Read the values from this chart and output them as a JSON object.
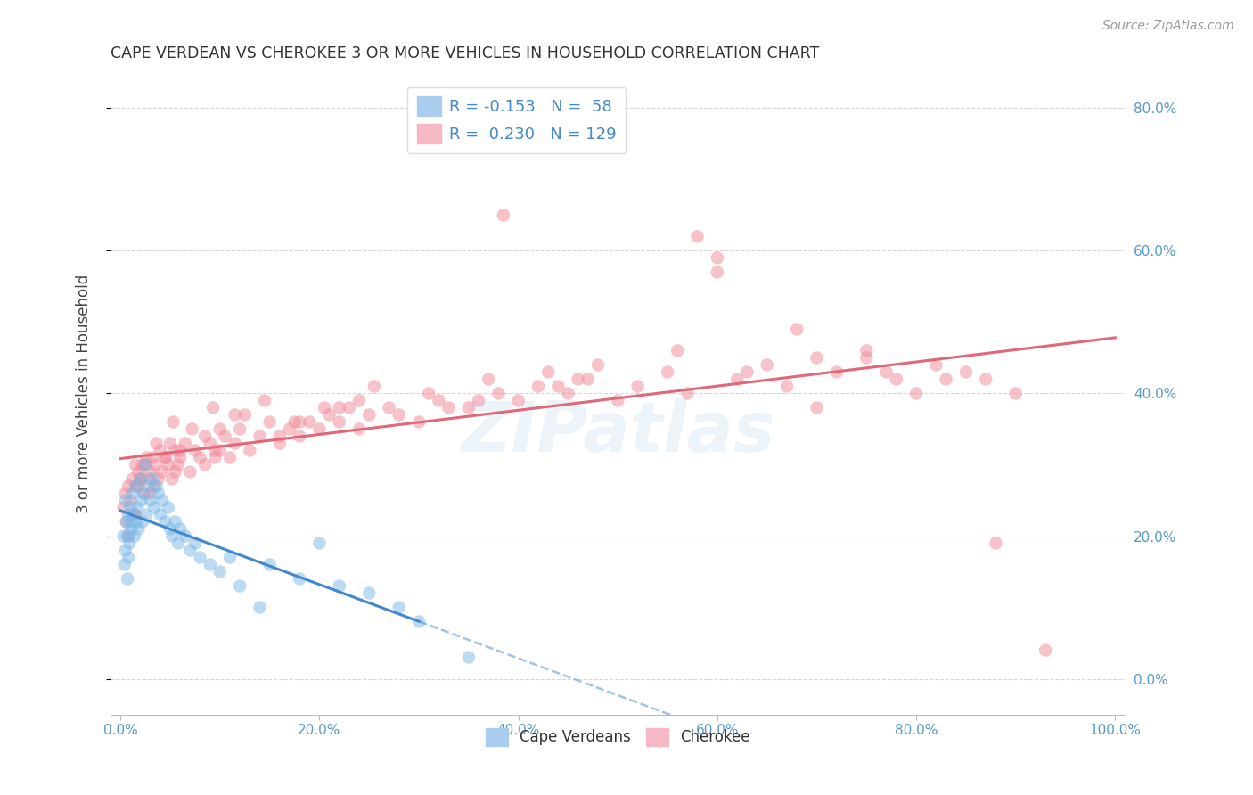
{
  "title": "CAPE VERDEAN VS CHEROKEE 3 OR MORE VEHICLES IN HOUSEHOLD CORRELATION CHART",
  "source": "Source: ZipAtlas.com",
  "ylabel": "3 or more Vehicles in Household",
  "cape_verdean_color": "#7ab8e8",
  "cherokee_color": "#f08898",
  "cape_verdean_line_color": "#4488cc",
  "cherokee_line_color": "#e06878",
  "watermark": "ZIPatlas",
  "background_color": "#ffffff",
  "grid_color": "#cccccc",
  "cv_R": "-0.153",
  "cv_N": "58",
  "ch_R": "0.230",
  "ch_N": "129",
  "xlim": [
    0,
    100
  ],
  "ylim": [
    -5,
    85
  ],
  "xtick_vals": [
    0,
    20,
    40,
    60,
    80,
    100
  ],
  "ytick_vals": [
    0,
    20,
    40,
    60,
    80
  ],
  "cape_verdean_x": [
    0.3,
    0.4,
    0.5,
    0.5,
    0.6,
    0.7,
    0.7,
    0.8,
    0.8,
    0.9,
    1.0,
    1.0,
    1.1,
    1.2,
    1.3,
    1.4,
    1.5,
    1.6,
    1.7,
    1.8,
    2.0,
    2.1,
    2.2,
    2.3,
    2.5,
    2.6,
    2.8,
    3.0,
    3.2,
    3.4,
    3.6,
    3.8,
    4.0,
    4.2,
    4.5,
    4.8,
    5.0,
    5.2,
    5.5,
    5.8,
    6.0,
    6.5,
    7.0,
    7.5,
    8.0,
    9.0,
    10.0,
    11.0,
    12.0,
    14.0,
    15.0,
    18.0,
    20.0,
    22.0,
    25.0,
    28.0,
    30.0,
    35.0
  ],
  "cape_verdean_y": [
    20.0,
    16.0,
    25.0,
    18.0,
    22.0,
    14.0,
    20.0,
    17.0,
    23.0,
    19.0,
    22.0,
    24.0,
    21.0,
    26.0,
    23.0,
    20.0,
    27.0,
    22.0,
    24.0,
    21.0,
    28.0,
    25.0,
    22.0,
    26.0,
    30.0,
    23.0,
    27.0,
    25.0,
    28.0,
    24.0,
    27.0,
    26.0,
    23.0,
    25.0,
    22.0,
    24.0,
    21.0,
    20.0,
    22.0,
    19.0,
    21.0,
    20.0,
    18.0,
    19.0,
    17.0,
    16.0,
    15.0,
    17.0,
    13.0,
    10.0,
    16.0,
    14.0,
    19.0,
    13.0,
    12.0,
    10.0,
    8.0,
    3.0
  ],
  "cherokee_x": [
    0.3,
    0.5,
    0.6,
    0.8,
    1.0,
    1.2,
    1.4,
    1.5,
    1.6,
    1.8,
    2.0,
    2.2,
    2.4,
    2.6,
    2.8,
    3.0,
    3.2,
    3.4,
    3.5,
    3.8,
    4.0,
    4.2,
    4.5,
    4.8,
    5.0,
    5.2,
    5.5,
    5.8,
    6.0,
    6.5,
    7.0,
    7.5,
    8.0,
    8.5,
    9.0,
    9.5,
    10.0,
    10.5,
    11.0,
    11.5,
    12.0,
    13.0,
    14.0,
    15.0,
    16.0,
    17.0,
    18.0,
    19.0,
    20.0,
    21.0,
    22.0,
    23.0,
    24.0,
    25.0,
    27.0,
    30.0,
    32.0,
    35.0,
    38.0,
    40.0,
    42.0,
    45.0,
    47.0,
    50.0,
    52.0,
    55.0,
    57.0,
    60.0,
    62.0,
    65.0,
    67.0,
    70.0,
    72.0,
    75.0,
    78.0,
    80.0,
    82.0,
    85.0,
    87.0,
    90.0,
    2.5,
    3.6,
    5.3,
    7.2,
    9.3,
    11.5,
    14.5,
    17.5,
    20.5,
    25.5,
    31.0,
    37.0,
    43.0,
    48.0,
    56.0,
    63.0,
    70.0,
    77.0,
    83.0,
    1.8,
    4.5,
    8.5,
    12.5,
    18.0,
    24.0,
    33.0,
    44.0,
    58.0,
    68.0,
    2.0,
    6.0,
    10.0,
    16.0,
    22.0,
    28.0,
    36.0,
    46.0,
    60.0,
    75.0,
    88.0,
    0.8,
    1.5,
    3.0,
    5.5,
    9.5,
    38.5,
    93.0
  ],
  "cherokee_y": [
    24.0,
    26.0,
    22.0,
    27.0,
    25.0,
    28.0,
    23.0,
    30.0,
    27.0,
    29.0,
    28.0,
    30.0,
    26.0,
    31.0,
    28.0,
    29.0,
    31.0,
    27.0,
    30.0,
    28.0,
    32.0,
    29.0,
    31.0,
    30.0,
    33.0,
    28.0,
    32.0,
    30.0,
    31.0,
    33.0,
    29.0,
    32.0,
    31.0,
    30.0,
    33.0,
    31.0,
    32.0,
    34.0,
    31.0,
    33.0,
    35.0,
    32.0,
    34.0,
    36.0,
    33.0,
    35.0,
    34.0,
    36.0,
    35.0,
    37.0,
    36.0,
    38.0,
    35.0,
    37.0,
    38.0,
    36.0,
    39.0,
    38.0,
    40.0,
    39.0,
    41.0,
    40.0,
    42.0,
    39.0,
    41.0,
    43.0,
    40.0,
    57.0,
    42.0,
    44.0,
    41.0,
    38.0,
    43.0,
    45.0,
    42.0,
    40.0,
    44.0,
    43.0,
    42.0,
    40.0,
    30.0,
    33.0,
    36.0,
    35.0,
    38.0,
    37.0,
    39.0,
    36.0,
    38.0,
    41.0,
    40.0,
    42.0,
    43.0,
    44.0,
    46.0,
    43.0,
    45.0,
    43.0,
    42.0,
    27.0,
    31.0,
    34.0,
    37.0,
    36.0,
    39.0,
    38.0,
    41.0,
    62.0,
    49.0,
    28.0,
    32.0,
    35.0,
    34.0,
    38.0,
    37.0,
    39.0,
    42.0,
    59.0,
    46.0,
    19.0,
    20.0,
    23.0,
    26.0,
    29.0,
    32.0,
    65.0,
    4.0
  ]
}
